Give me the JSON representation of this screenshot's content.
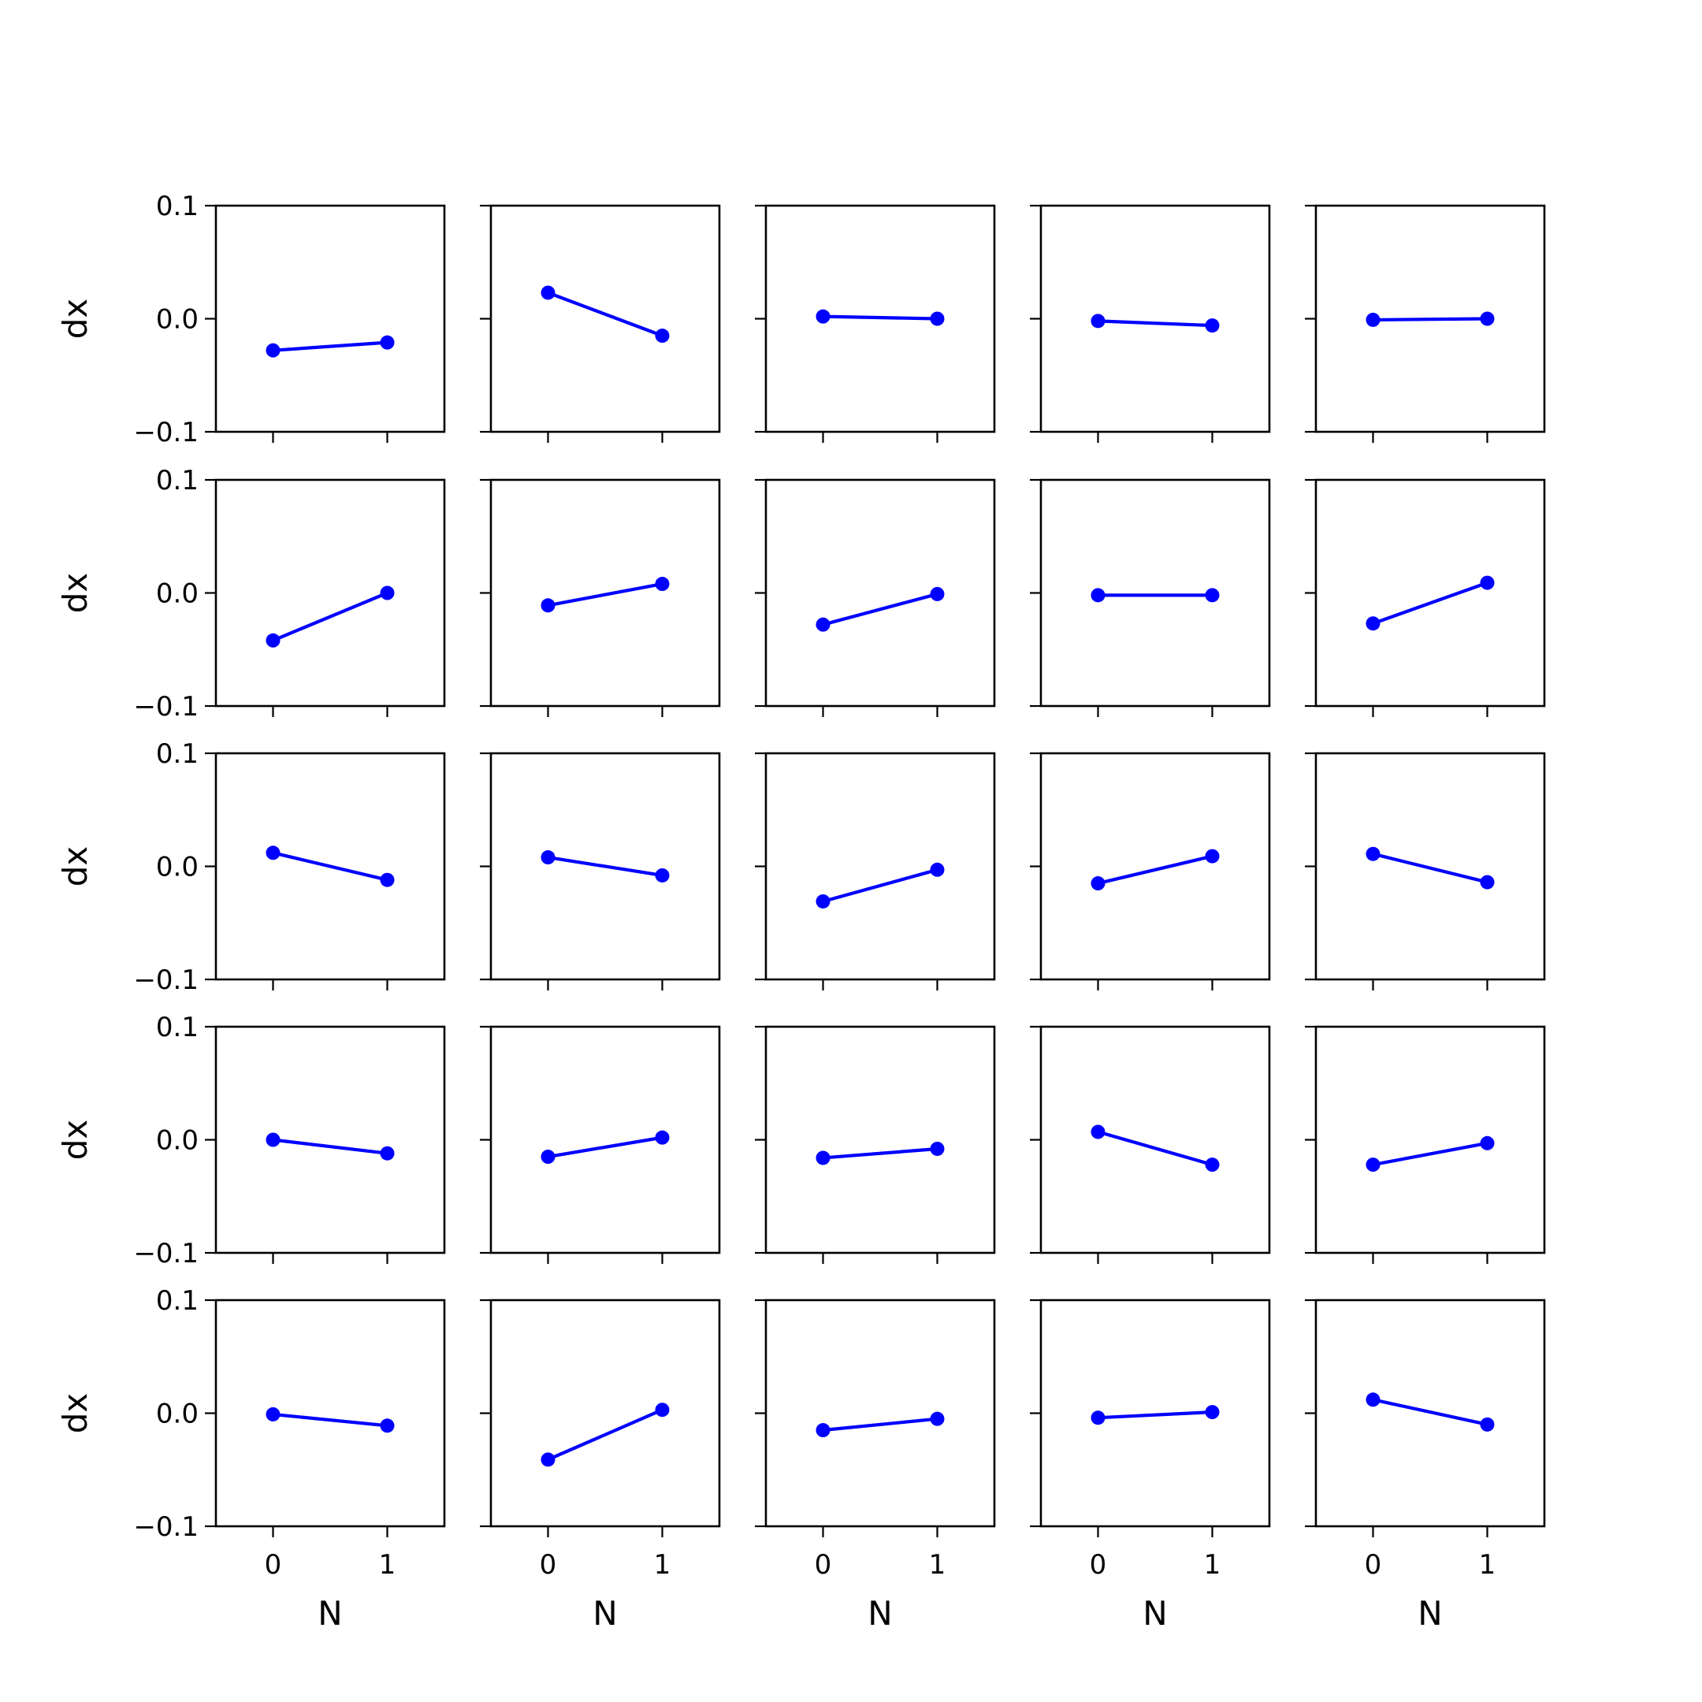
{
  "chart_data": {
    "type": "line",
    "layout": {
      "rows": 5,
      "cols": 5
    },
    "shared_axes": {
      "xlabel": "N",
      "ylabel": "dx",
      "xticks": [
        "0",
        "1"
      ],
      "yticks": [
        "0.1",
        "0.0",
        "−0.1"
      ],
      "xlim": [
        -0.5,
        1.5
      ],
      "ylim": [
        -0.1,
        0.1
      ]
    },
    "style": {
      "line_color": "#0000ff",
      "marker": "circle",
      "grid": false
    },
    "panels": [
      {
        "x": [
          0,
          1
        ],
        "y": [
          -0.028,
          -0.021
        ]
      },
      {
        "x": [
          0,
          1
        ],
        "y": [
          0.023,
          -0.015
        ]
      },
      {
        "x": [
          0,
          1
        ],
        "y": [
          0.002,
          0.0
        ]
      },
      {
        "x": [
          0,
          1
        ],
        "y": [
          -0.002,
          -0.006
        ]
      },
      {
        "x": [
          0,
          1
        ],
        "y": [
          -0.001,
          0.0
        ]
      },
      {
        "x": [
          0,
          1
        ],
        "y": [
          -0.042,
          0.0
        ]
      },
      {
        "x": [
          0,
          1
        ],
        "y": [
          -0.011,
          0.008
        ]
      },
      {
        "x": [
          0,
          1
        ],
        "y": [
          -0.028,
          -0.001
        ]
      },
      {
        "x": [
          0,
          1
        ],
        "y": [
          -0.002,
          -0.002
        ]
      },
      {
        "x": [
          0,
          1
        ],
        "y": [
          -0.027,
          0.009
        ]
      },
      {
        "x": [
          0,
          1
        ],
        "y": [
          0.012,
          -0.012
        ]
      },
      {
        "x": [
          0,
          1
        ],
        "y": [
          0.008,
          -0.008
        ]
      },
      {
        "x": [
          0,
          1
        ],
        "y": [
          -0.031,
          -0.003
        ]
      },
      {
        "x": [
          0,
          1
        ],
        "y": [
          -0.015,
          0.009
        ]
      },
      {
        "x": [
          0,
          1
        ],
        "y": [
          0.011,
          -0.014
        ]
      },
      {
        "x": [
          0,
          1
        ],
        "y": [
          0.0,
          -0.012
        ]
      },
      {
        "x": [
          0,
          1
        ],
        "y": [
          -0.015,
          0.002
        ]
      },
      {
        "x": [
          0,
          1
        ],
        "y": [
          -0.016,
          -0.008
        ]
      },
      {
        "x": [
          0,
          1
        ],
        "y": [
          0.007,
          -0.022
        ]
      },
      {
        "x": [
          0,
          1
        ],
        "y": [
          -0.022,
          -0.003
        ]
      },
      {
        "x": [
          0,
          1
        ],
        "y": [
          -0.001,
          -0.011
        ]
      },
      {
        "x": [
          0,
          1
        ],
        "y": [
          -0.041,
          0.003
        ]
      },
      {
        "x": [
          0,
          1
        ],
        "y": [
          -0.015,
          -0.005
        ]
      },
      {
        "x": [
          0,
          1
        ],
        "y": [
          -0.004,
          0.001
        ]
      },
      {
        "x": [
          0,
          1
        ],
        "y": [
          0.012,
          -0.01
        ]
      }
    ]
  }
}
